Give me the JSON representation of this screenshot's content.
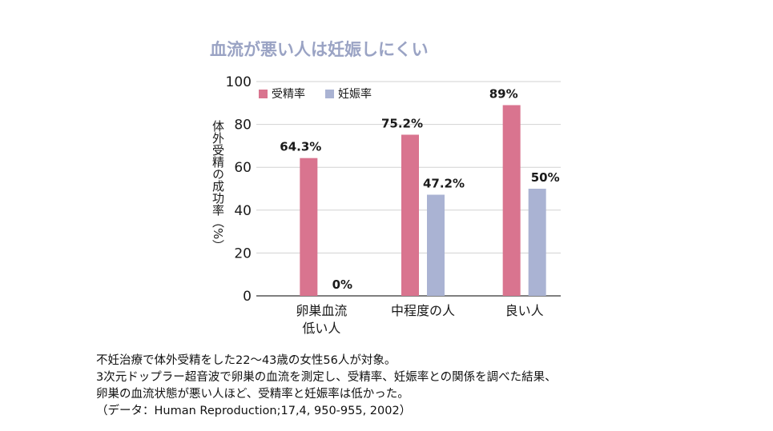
{
  "chart_data": {
    "type": "bar",
    "title": "血流が悪い人は妊娠しにくい",
    "ylabel": "体外受精の成功率（%）",
    "xlabel": "",
    "ylim": [
      0,
      100
    ],
    "yticks": [
      "0",
      "20",
      "40",
      "60",
      "80",
      "100"
    ],
    "grid": true,
    "legend_position": "top-left",
    "categories": [
      [
        "卵巣血流",
        "低い人"
      ],
      [
        "中程度の人"
      ],
      [
        "良い人"
      ]
    ],
    "series": [
      {
        "name": "受精率",
        "color": "#d9748f",
        "values": [
          64.3,
          75.2,
          89
        ],
        "labels": [
          "64.3%",
          "75.2%",
          "89%"
        ]
      },
      {
        "name": "妊娠率",
        "color": "#aab3d3",
        "values": [
          0,
          47.2,
          50
        ],
        "labels": [
          "0%",
          "47.2%",
          "50%"
        ]
      }
    ]
  },
  "caption": [
    "不妊治療で体外受精をした22〜43歳の女性56人が対象。",
    "3次元ドップラー超音波で卵巣の血流を測定し、受精率、妊娠率との関係を調べた結果、",
    "卵巣の血流状態が悪い人ほど、受精率と妊娠率は低かった。",
    "（データ：Human Reproduction;17,4, 950-955, 2002）"
  ]
}
